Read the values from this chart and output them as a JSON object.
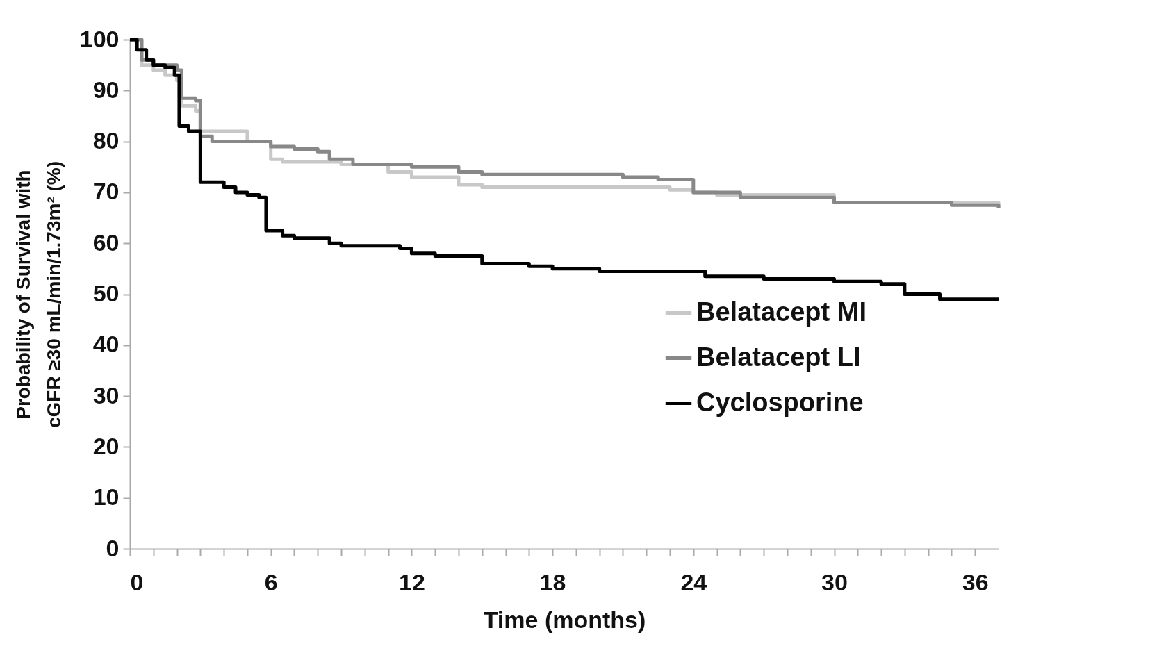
{
  "chart_data": {
    "type": "step",
    "xlabel": "Time (months)",
    "ylabel": "Probability of Survival with\ncGFR ≥30 mL/min/1.73m² (%)",
    "xlim": [
      0,
      37
    ],
    "ylim": [
      0,
      100
    ],
    "xticks": [
      0,
      {
        "value": 1,
        "label": null
      },
      {
        "value": 2,
        "label": null
      },
      {
        "value": 3,
        "label": null
      },
      {
        "value": 4,
        "label": null
      },
      {
        "value": 5,
        "label": null
      },
      6,
      {
        "value": 7,
        "label": null
      },
      {
        "value": 8,
        "label": null
      },
      {
        "value": 9,
        "label": null
      },
      {
        "value": 10,
        "label": null
      },
      {
        "value": 11,
        "label": null
      },
      12,
      {
        "value": 13,
        "label": null
      },
      {
        "value": 14,
        "label": null
      },
      {
        "value": 15,
        "label": null
      },
      {
        "value": 16,
        "label": null
      },
      {
        "value": 17,
        "label": null
      },
      18,
      {
        "value": 19,
        "label": null
      },
      {
        "value": 20,
        "label": null
      },
      {
        "value": 21,
        "label": null
      },
      {
        "value": 22,
        "label": null
      },
      {
        "value": 23,
        "label": null
      },
      24,
      {
        "value": 25,
        "label": null
      },
      {
        "value": 26,
        "label": null
      },
      {
        "value": 27,
        "label": null
      },
      {
        "value": 28,
        "label": null
      },
      {
        "value": 29,
        "label": null
      },
      30,
      {
        "value": 31,
        "label": null
      },
      {
        "value": 32,
        "label": null
      },
      {
        "value": 33,
        "label": null
      },
      {
        "value": 34,
        "label": null
      },
      {
        "value": 35,
        "label": null
      },
      36
    ],
    "yticks": [
      0,
      10,
      20,
      30,
      40,
      50,
      60,
      70,
      80,
      90,
      100
    ],
    "legend": "bottom right",
    "grid": false,
    "line_style": "solid",
    "marker": "none",
    "series": [
      {
        "name": "Belatacept MI",
        "color": "#c8c8c8",
        "x": [
          0,
          0.5,
          1,
          1.5,
          2,
          2.2,
          2.8,
          3,
          4,
          5,
          6,
          6.5,
          9,
          11,
          12,
          14,
          15,
          23,
          24,
          25,
          30,
          37
        ],
        "values": [
          100,
          95,
          94,
          93,
          92,
          87,
          86,
          82,
          82,
          80,
          76.5,
          76,
          75.5,
          74,
          73,
          71.5,
          71,
          70.5,
          70,
          69.5,
          68,
          67
        ]
      },
      {
        "name": "Belatacept LI",
        "color": "#888888",
        "x": [
          0,
          0.5,
          1,
          2,
          2.2,
          2.8,
          3,
          3.5,
          5,
          6,
          7,
          8,
          8.5,
          9.5,
          12,
          14,
          15,
          21,
          22.5,
          24,
          26,
          30,
          35,
          37
        ],
        "values": [
          100,
          96,
          95,
          94,
          88.5,
          88,
          81,
          80,
          80,
          79,
          78.5,
          78,
          76.5,
          75.5,
          75,
          74,
          73.5,
          73,
          72.5,
          70,
          69,
          68,
          67.5,
          67
        ]
      },
      {
        "name": "Cyclosporine",
        "color": "#000000",
        "x": [
          0,
          0.3,
          0.7,
          1,
          1.5,
          1.9,
          2.1,
          2.5,
          3,
          4,
          4.5,
          5,
          5.5,
          5.8,
          6.5,
          7,
          8.5,
          9,
          11.5,
          12,
          13,
          15,
          17,
          18,
          20,
          24.5,
          27,
          30,
          32,
          33,
          34.5,
          37
        ],
        "values": [
          100,
          98,
          96,
          95,
          94.5,
          93,
          83,
          82,
          72,
          71,
          70,
          69.5,
          69,
          62.5,
          61.5,
          61,
          60,
          59.5,
          59,
          58,
          57.5,
          56,
          55.5,
          55,
          54.5,
          53.5,
          53,
          52.5,
          52,
          50,
          49,
          49
        ]
      }
    ]
  }
}
